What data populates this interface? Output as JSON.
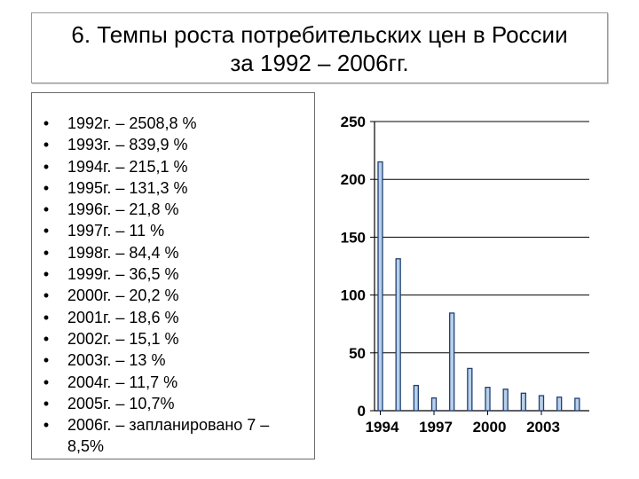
{
  "title": {
    "line1": "6. Темпы роста потребительских цен в России",
    "line2": "за 1992 – 2006гг."
  },
  "list": [
    "1992г. – 2508,8 %",
    "1993г. – 839,9 %",
    "1994г. – 215,1 %",
    "1995г. – 131,3 %",
    "1996г. – 21,8 %",
    "1997г. – 11 %",
    "1998г. – 84,4 %",
    "1999г. – 36,5 %",
    "2000г. – 20,2 %",
    "2001г. – 18,6 %",
    "2002г. – 15,1 %",
    "2003г. – 13 %",
    "2004г. – 11,7 %",
    "2005г. – 10,7%",
    "2006г. – запланировано 7 – 8,5%"
  ],
  "bullet_char": "•",
  "chart_data": {
    "type": "bar",
    "categories": [
      "1994",
      "1995",
      "1996",
      "1997",
      "1998",
      "1999",
      "2000",
      "2001",
      "2002",
      "2003",
      "2004",
      "2005"
    ],
    "values": [
      215.1,
      131.3,
      21.8,
      11,
      84.4,
      36.5,
      20.2,
      18.6,
      15.1,
      13,
      11.7,
      10.7
    ],
    "ylim": [
      0,
      250
    ],
    "yticks": [
      0,
      50,
      100,
      150,
      200,
      250
    ],
    "xtick_labels": [
      "1994",
      "1997",
      "2000",
      "2003"
    ],
    "grid": true,
    "bar_color": "#b8d0ea",
    "bar_edge": "#1f3f73",
    "title": "",
    "xlabel": "",
    "ylabel": ""
  }
}
